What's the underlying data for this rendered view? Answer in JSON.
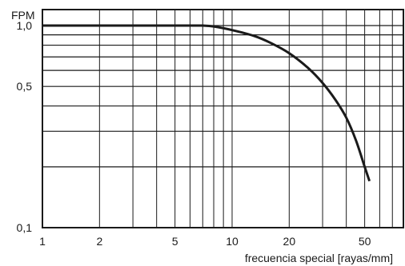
{
  "chart_data": {
    "type": "line",
    "title": "",
    "ylabel": "FPM",
    "xlabel": "frecuencia special [rayas/mm]",
    "x_scale": "log",
    "y_scale": "log",
    "xlim": [
      1,
      80
    ],
    "ylim": [
      0.1,
      1.2
    ],
    "grid": true,
    "x_ticks": [
      {
        "value": 1,
        "label": "1"
      },
      {
        "value": 2,
        "label": "2"
      },
      {
        "value": 5,
        "label": "5"
      },
      {
        "value": 10,
        "label": "10"
      },
      {
        "value": 20,
        "label": "20"
      },
      {
        "value": 50,
        "label": "50"
      }
    ],
    "y_ticks": [
      {
        "value": 1.0,
        "label": "1,0"
      },
      {
        "value": 0.5,
        "label": "0,5"
      },
      {
        "value": 0.1,
        "label": "0,1"
      }
    ],
    "x_gridlines": [
      1,
      2,
      3,
      4,
      5,
      6,
      7,
      8,
      9,
      10,
      20,
      30,
      40,
      50,
      60,
      70,
      80
    ],
    "y_gridlines": [
      1.0,
      0.9,
      0.8,
      0.7,
      0.6,
      0.5,
      0.4,
      0.3,
      0.2
    ],
    "series": [
      {
        "x": [
          1,
          2,
          4,
          6,
          7,
          8,
          10,
          13,
          16,
          20,
          25,
          30,
          35,
          40,
          45,
          50,
          53
        ],
        "y": [
          1.0,
          1.0,
          1.0,
          1.0,
          1.0,
          0.99,
          0.95,
          0.89,
          0.82,
          0.73,
          0.62,
          0.52,
          0.43,
          0.35,
          0.27,
          0.2,
          0.17
        ]
      }
    ],
    "colors": {
      "line": "#1a1a1a",
      "grid": "#1a1a1a",
      "axis": "#1a1a1a"
    }
  }
}
